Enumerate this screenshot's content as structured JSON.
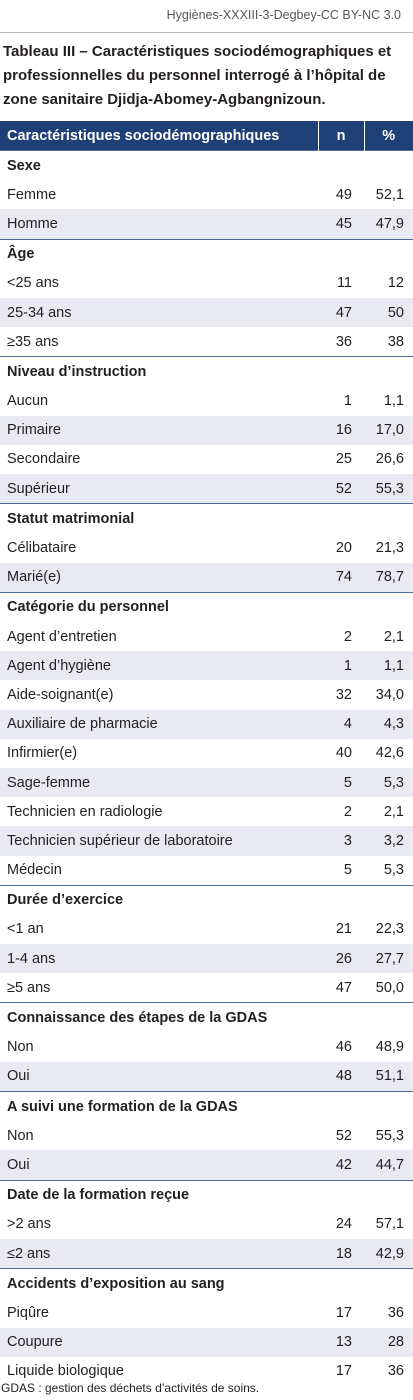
{
  "header": {
    "source": "Hygiènes-XXXIII-3-Degbey-CC BY-NC 3.0"
  },
  "caption": "Tableau III – Caractéristiques sociodémographiques et professionnelles du personnel interrogé à l’hôpital de zone sanitaire Djidja-Abomey-Agbangnizoun.",
  "table": {
    "headers": [
      "Caractéristiques sociodémographiques",
      "n",
      "%"
    ],
    "groups": [
      {
        "title": "Sexe",
        "rows": [
          {
            "label": "Femme",
            "n": "49",
            "pct": "52,1"
          },
          {
            "label": "Homme",
            "n": "45",
            "pct": "47,9"
          }
        ]
      },
      {
        "title": "Âge",
        "rows": [
          {
            "label": "<25 ans",
            "n": "11",
            "pct": "12"
          },
          {
            "label": "25-34 ans",
            "n": "47",
            "pct": "50"
          },
          {
            "label": "≥35 ans",
            "n": "36",
            "pct": "38"
          }
        ]
      },
      {
        "title": "Niveau d’instruction",
        "rows": [
          {
            "label": "Aucun",
            "n": "1",
            "pct": "1,1"
          },
          {
            "label": "Primaire",
            "n": "16",
            "pct": "17,0"
          },
          {
            "label": "Secondaire",
            "n": "25",
            "pct": "26,6"
          },
          {
            "label": "Supérieur",
            "n": "52",
            "pct": "55,3"
          }
        ]
      },
      {
        "title": "Statut matrimonial",
        "rows": [
          {
            "label": "Célibataire",
            "n": "20",
            "pct": "21,3"
          },
          {
            "label": "Marié(e)",
            "n": "74",
            "pct": "78,7"
          }
        ]
      },
      {
        "title": "Catégorie du personnel",
        "rows": [
          {
            "label": "Agent d’entretien",
            "n": "2",
            "pct": "2,1"
          },
          {
            "label": "Agent d’hygiène",
            "n": "1",
            "pct": "1,1"
          },
          {
            "label": "Aide-soignant(e)",
            "n": "32",
            "pct": "34,0"
          },
          {
            "label": "Auxiliaire de pharmacie",
            "n": "4",
            "pct": "4,3"
          },
          {
            "label": "Infirmier(e)",
            "n": "40",
            "pct": "42,6"
          },
          {
            "label": "Sage-femme",
            "n": "5",
            "pct": "5,3"
          },
          {
            "label": "Technicien en radiologie",
            "n": "2",
            "pct": "2,1"
          },
          {
            "label": "Technicien supérieur de laboratoire",
            "n": "3",
            "pct": "3,2"
          },
          {
            "label": "Médecin",
            "n": "5",
            "pct": "5,3"
          }
        ]
      },
      {
        "title": "Durée d’exercice",
        "rows": [
          {
            "label": "<1 an",
            "n": "21",
            "pct": "22,3"
          },
          {
            "label": "1-4 ans",
            "n": "26",
            "pct": "27,7"
          },
          {
            "label": "≥5 ans",
            "n": "47",
            "pct": "50,0"
          }
        ]
      },
      {
        "title": "Connaissance des étapes de la GDAS",
        "rows": [
          {
            "label": "Non",
            "n": "46",
            "pct": "48,9"
          },
          {
            "label": "Oui",
            "n": "48",
            "pct": "51,1"
          }
        ]
      },
      {
        "title": "A suivi une formation de la GDAS",
        "rows": [
          {
            "label": "Non",
            "n": "52",
            "pct": "55,3"
          },
          {
            "label": "Oui",
            "n": "42",
            "pct": "44,7"
          }
        ]
      },
      {
        "title": "Date de la formation reçue",
        "rows": [
          {
            "label": ">2 ans",
            "n": "24",
            "pct": "57,1"
          },
          {
            "label": "≤2 ans",
            "n": "18",
            "pct": "42,9"
          }
        ]
      },
      {
        "title": "Accidents d’exposition au sang",
        "rows": [
          {
            "label": "Piqûre",
            "n": "17",
            "pct": "36"
          },
          {
            "label": "Coupure",
            "n": "13",
            "pct": "28"
          },
          {
            "label": "Liquide biologique",
            "n": "17",
            "pct": "36"
          }
        ]
      }
    ]
  },
  "footnote": "GDAS : gestion des déchets d’activités de soins."
}
